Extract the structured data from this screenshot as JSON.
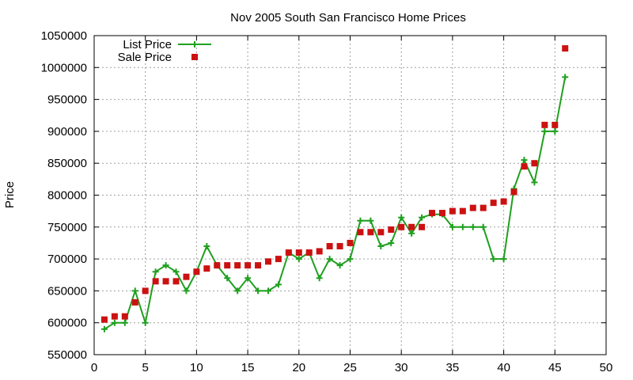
{
  "chart_data": {
    "type": "line",
    "title": "Nov 2005 South San Francisco Home Prices",
    "xlabel": "",
    "ylabel": "Price",
    "xlim": [
      0,
      50
    ],
    "ylim": [
      550000,
      1050000
    ],
    "x_ticks": [
      0,
      5,
      10,
      15,
      20,
      25,
      30,
      35,
      40,
      45,
      50
    ],
    "y_ticks": [
      550000,
      600000,
      650000,
      700000,
      750000,
      800000,
      850000,
      900000,
      950000,
      1000000,
      1050000
    ],
    "grid": true,
    "legend_position": "top-left",
    "series": [
      {
        "name": "List Price",
        "style": "line+crosses",
        "color": "#1fa01f",
        "x": [
          1,
          2,
          3,
          4,
          5,
          6,
          7,
          8,
          9,
          10,
          11,
          12,
          13,
          14,
          15,
          16,
          17,
          18,
          19,
          20,
          21,
          22,
          23,
          24,
          25,
          26,
          27,
          28,
          29,
          30,
          31,
          32,
          33,
          34,
          35,
          36,
          37,
          38,
          39,
          40,
          41,
          42,
          43,
          44,
          45,
          46
        ],
        "values": [
          590000,
          600000,
          600000,
          650000,
          600000,
          680000,
          690000,
          680000,
          650000,
          680000,
          720000,
          690000,
          670000,
          650000,
          670000,
          650000,
          650000,
          660000,
          710000,
          700000,
          710000,
          670000,
          700000,
          690000,
          700000,
          760000,
          760000,
          720000,
          725000,
          765000,
          740000,
          765000,
          770000,
          770000,
          750000,
          750000,
          750000,
          750000,
          700000,
          700000,
          810000,
          855000,
          820000,
          900000,
          900000,
          985000
        ]
      },
      {
        "name": "Sale Price",
        "style": "squares",
        "color": "#cc1111",
        "x": [
          1,
          2,
          3,
          4,
          5,
          6,
          7,
          8,
          9,
          10,
          11,
          12,
          13,
          14,
          15,
          16,
          17,
          18,
          19,
          20,
          21,
          22,
          23,
          24,
          25,
          26,
          27,
          28,
          29,
          30,
          31,
          32,
          33,
          34,
          35,
          36,
          37,
          38,
          39,
          40,
          41,
          42,
          43,
          44,
          45,
          46
        ],
        "values": [
          605000,
          610000,
          610000,
          632000,
          650000,
          665000,
          665000,
          665000,
          672000,
          680000,
          685000,
          690000,
          690000,
          690000,
          690000,
          690000,
          696000,
          700000,
          710000,
          710000,
          710000,
          712000,
          720000,
          720000,
          725000,
          742000,
          742000,
          742000,
          746000,
          750000,
          750000,
          750000,
          772000,
          772000,
          775000,
          775000,
          780000,
          780000,
          788000,
          790000,
          805000,
          845000,
          850000,
          910000,
          910000,
          1030000
        ]
      }
    ]
  }
}
